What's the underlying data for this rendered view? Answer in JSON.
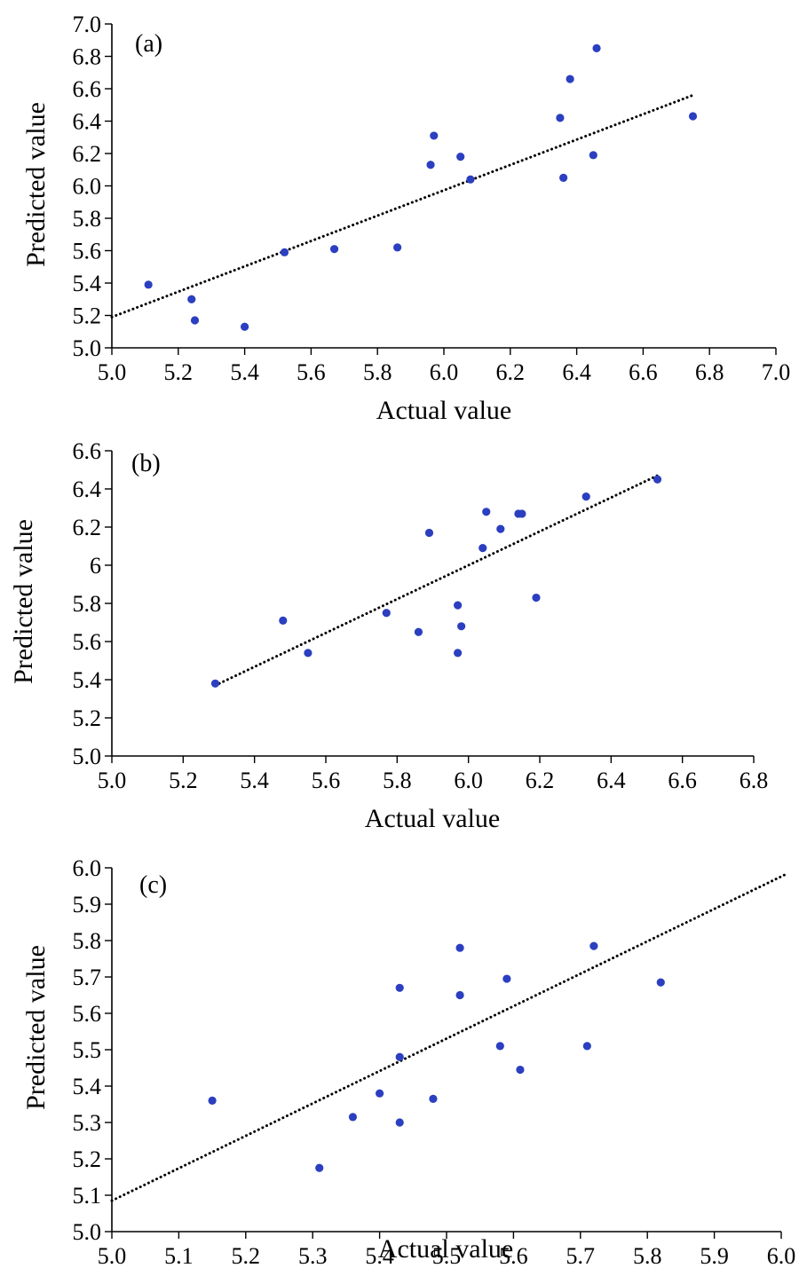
{
  "chart_data": [
    {
      "type": "scatter",
      "panel_label": "(a)",
      "xlabel": "Actual value",
      "ylabel": "Predicted value",
      "xlim": [
        5.0,
        7.0
      ],
      "ylim": [
        5.0,
        7.0
      ],
      "xticks": [
        "5.0",
        "5.2",
        "5.4",
        "5.6",
        "5.8",
        "6.0",
        "6.2",
        "6.4",
        "6.6",
        "6.8",
        "7.0"
      ],
      "yticks": [
        "5.0",
        "5.2",
        "5.4",
        "5.6",
        "5.8",
        "6.0",
        "6.2",
        "6.4",
        "6.6",
        "6.8",
        "7.0"
      ],
      "point_color": "#2b3fc0",
      "trendline": {
        "style": "dotted",
        "x": [
          5.0,
          6.75
        ],
        "y": [
          5.19,
          6.56
        ]
      },
      "points": [
        {
          "x": 5.11,
          "y": 5.39
        },
        {
          "x": 5.24,
          "y": 5.3
        },
        {
          "x": 5.25,
          "y": 5.17
        },
        {
          "x": 5.4,
          "y": 5.13
        },
        {
          "x": 5.52,
          "y": 5.59
        },
        {
          "x": 5.67,
          "y": 5.61
        },
        {
          "x": 5.86,
          "y": 5.62
        },
        {
          "x": 5.96,
          "y": 6.13
        },
        {
          "x": 5.97,
          "y": 6.31
        },
        {
          "x": 6.05,
          "y": 6.18
        },
        {
          "x": 6.08,
          "y": 6.04
        },
        {
          "x": 6.35,
          "y": 6.42
        },
        {
          "x": 6.36,
          "y": 6.05
        },
        {
          "x": 6.38,
          "y": 6.66
        },
        {
          "x": 6.45,
          "y": 6.19
        },
        {
          "x": 6.46,
          "y": 6.85
        },
        {
          "x": 6.75,
          "y": 6.43
        }
      ]
    },
    {
      "type": "scatter",
      "panel_label": "(b)",
      "xlabel": "Actual value",
      "ylabel": "Predicted value",
      "xlim": [
        5.0,
        6.8
      ],
      "ylim": [
        5.0,
        6.6
      ],
      "xticks": [
        "5.0",
        "5.2",
        "5.4",
        "5.6",
        "5.8",
        "6.0",
        "6.2",
        "6.4",
        "6.6",
        "6.8"
      ],
      "yticks": [
        "5.0",
        "5.2",
        "5.4",
        "5.6",
        "5.8",
        "6",
        "6.2",
        "6.4",
        "6.6"
      ],
      "point_color": "#2b3fc0",
      "trendline": {
        "style": "dotted",
        "x": [
          5.29,
          6.53
        ],
        "y": [
          5.37,
          6.47
        ]
      },
      "points": [
        {
          "x": 5.29,
          "y": 5.38
        },
        {
          "x": 5.48,
          "y": 5.71
        },
        {
          "x": 5.55,
          "y": 5.54
        },
        {
          "x": 5.77,
          "y": 5.75
        },
        {
          "x": 5.86,
          "y": 5.65
        },
        {
          "x": 5.89,
          "y": 6.17
        },
        {
          "x": 5.97,
          "y": 5.79
        },
        {
          "x": 5.97,
          "y": 5.54
        },
        {
          "x": 5.98,
          "y": 5.68
        },
        {
          "x": 6.04,
          "y": 6.09
        },
        {
          "x": 6.05,
          "y": 6.28
        },
        {
          "x": 6.09,
          "y": 6.19
        },
        {
          "x": 6.14,
          "y": 6.27
        },
        {
          "x": 6.15,
          "y": 6.27
        },
        {
          "x": 6.19,
          "y": 5.83
        },
        {
          "x": 6.33,
          "y": 6.36
        },
        {
          "x": 6.53,
          "y": 6.45
        }
      ]
    },
    {
      "type": "scatter",
      "panel_label": "(c)",
      "xlabel": "Actual value",
      "ylabel": "Predicted value",
      "xlim": [
        5.0,
        6.0
      ],
      "ylim": [
        5.0,
        6.0
      ],
      "xticks": [
        "5.0",
        "5.1",
        "5.2",
        "5.3",
        "5.4",
        "5.5",
        "5.6",
        "5.7",
        "5.8",
        "5.9",
        "6.0"
      ],
      "yticks": [
        "5.0",
        "5.1",
        "5.2",
        "5.3",
        "5.4",
        "5.5",
        "5.6",
        "5.7",
        "5.8",
        "5.9",
        "6.0"
      ],
      "point_color": "#2b3fc0",
      "trendline": {
        "style": "dotted",
        "x": [
          5.0,
          6.01
        ],
        "y": [
          5.085,
          5.985
        ]
      },
      "points": [
        {
          "x": 5.15,
          "y": 5.36
        },
        {
          "x": 5.31,
          "y": 5.175
        },
        {
          "x": 5.36,
          "y": 5.315
        },
        {
          "x": 5.4,
          "y": 5.38
        },
        {
          "x": 5.43,
          "y": 5.67
        },
        {
          "x": 5.43,
          "y": 5.48
        },
        {
          "x": 5.43,
          "y": 5.3
        },
        {
          "x": 5.48,
          "y": 5.365
        },
        {
          "x": 5.52,
          "y": 5.78
        },
        {
          "x": 5.52,
          "y": 5.65
        },
        {
          "x": 5.58,
          "y": 5.51
        },
        {
          "x": 5.59,
          "y": 5.695
        },
        {
          "x": 5.61,
          "y": 5.445
        },
        {
          "x": 5.71,
          "y": 5.51
        },
        {
          "x": 5.72,
          "y": 5.785
        },
        {
          "x": 5.82,
          "y": 5.685
        }
      ]
    }
  ]
}
